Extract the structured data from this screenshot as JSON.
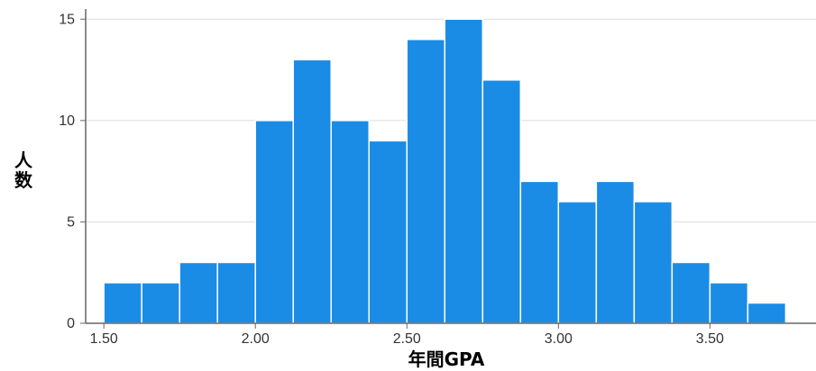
{
  "chart_data": {
    "type": "bar",
    "title": "",
    "xlabel": "年間GPA",
    "ylabel": "人数",
    "bin_width": 0.125,
    "bins": [
      {
        "start": 1.5,
        "end": 1.625,
        "count": 2
      },
      {
        "start": 1.625,
        "end": 1.75,
        "count": 2
      },
      {
        "start": 1.75,
        "end": 1.875,
        "count": 3
      },
      {
        "start": 1.875,
        "end": 2.0,
        "count": 3
      },
      {
        "start": 2.0,
        "end": 2.125,
        "count": 10
      },
      {
        "start": 2.125,
        "end": 2.25,
        "count": 13
      },
      {
        "start": 2.25,
        "end": 2.375,
        "count": 10
      },
      {
        "start": 2.375,
        "end": 2.5,
        "count": 9
      },
      {
        "start": 2.5,
        "end": 2.625,
        "count": 14
      },
      {
        "start": 2.625,
        "end": 2.75,
        "count": 15
      },
      {
        "start": 2.75,
        "end": 2.875,
        "count": 12
      },
      {
        "start": 2.875,
        "end": 3.0,
        "count": 7
      },
      {
        "start": 3.0,
        "end": 3.125,
        "count": 6
      },
      {
        "start": 3.125,
        "end": 3.25,
        "count": 7
      },
      {
        "start": 3.25,
        "end": 3.375,
        "count": 6
      },
      {
        "start": 3.375,
        "end": 3.5,
        "count": 3
      },
      {
        "start": 3.5,
        "end": 3.625,
        "count": 2
      },
      {
        "start": 3.625,
        "end": 3.75,
        "count": 1
      }
    ],
    "xlim": [
      1.44,
      3.85
    ],
    "ylim": [
      0,
      15.5
    ],
    "xticks": [
      1.5,
      2.0,
      2.5,
      3.0,
      3.5
    ],
    "xtick_labels": [
      "1.50",
      "2.00",
      "2.50",
      "3.00",
      "3.50"
    ],
    "yticks": [
      0,
      5,
      10,
      15
    ],
    "ytick_labels": [
      "0",
      "5",
      "10",
      "15"
    ],
    "grid": "horizontal",
    "bar_color": "#1a8ce6",
    "grid_color": "#dddddd",
    "axis_color": "#666666"
  }
}
